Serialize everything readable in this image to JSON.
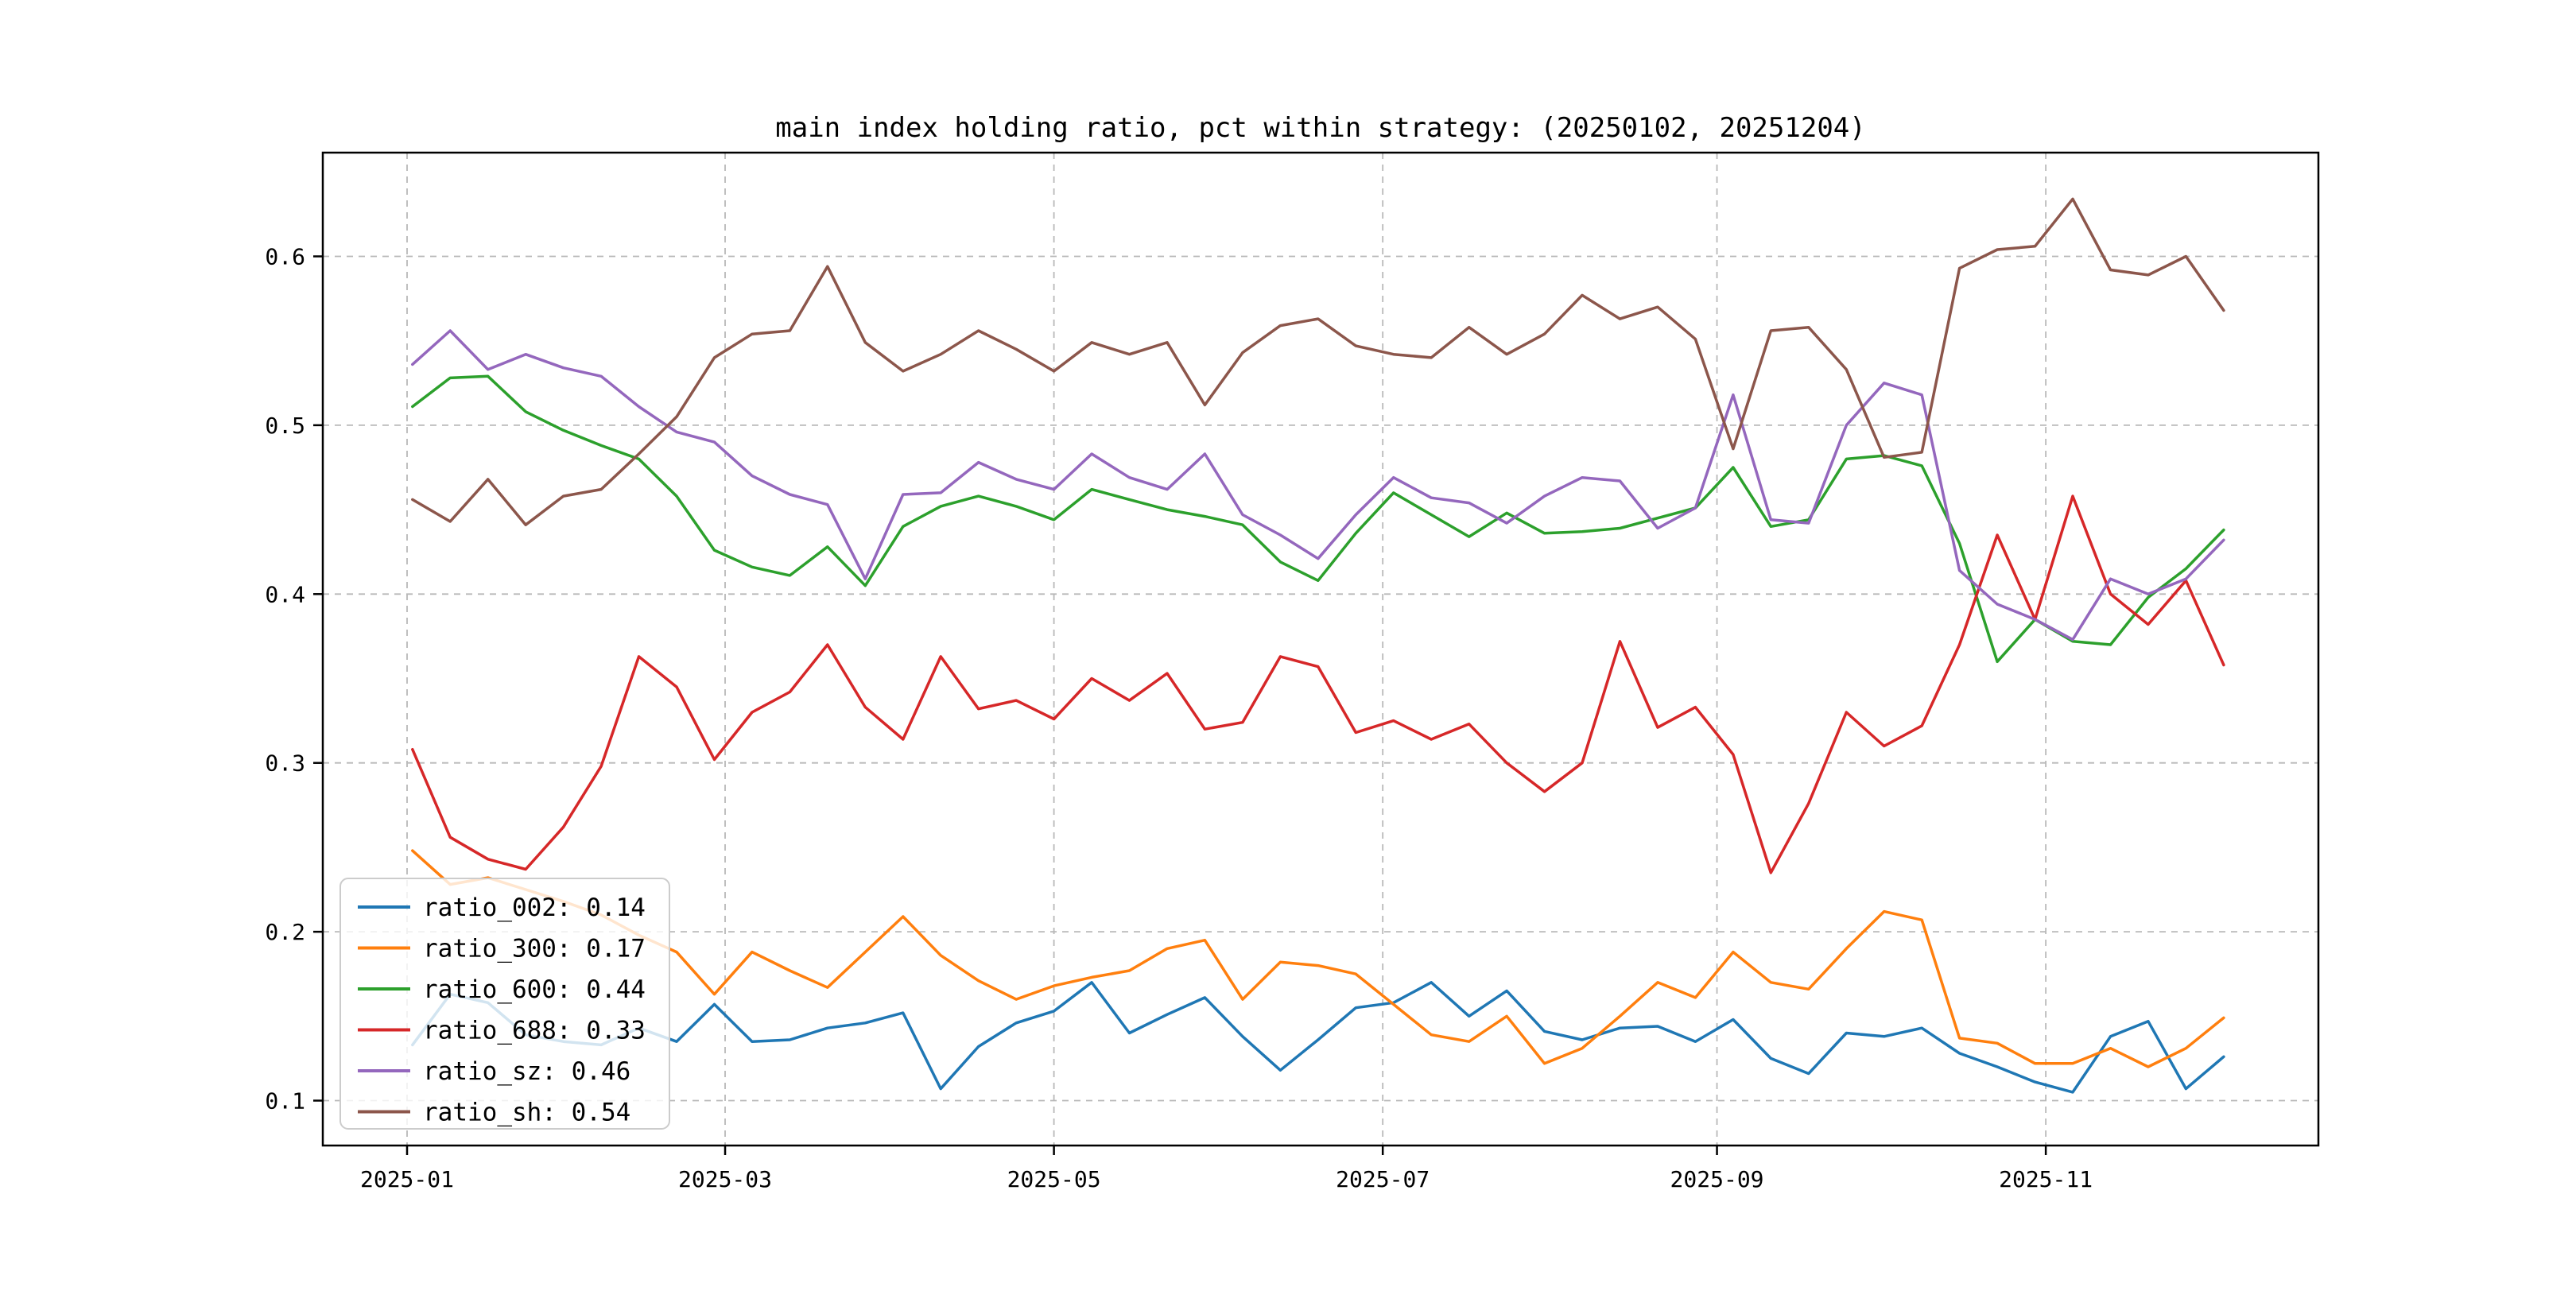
{
  "title": "main index holding ratio, pct within strategy: (20250102, 20251204)",
  "chart_data": {
    "type": "line",
    "title": "main index holding ratio, pct within strategy: (20250102, 20251204)",
    "xlabel": "",
    "ylabel": "",
    "grid": true,
    "grid_style": "dashed",
    "legend_position": "lower left",
    "ylim": [
      0.073,
      0.661
    ],
    "y_ticks": [
      0.1,
      0.2,
      0.3,
      0.4,
      0.5,
      0.6
    ],
    "y_tick_labels": [
      "0.1",
      "0.2",
      "0.3",
      "0.4",
      "0.5",
      "0.6"
    ],
    "x_tick_labels": [
      "2025-01",
      "2025-03",
      "2025-05",
      "2025-07",
      "2025-09",
      "2025-11"
    ],
    "x_tick_months": [
      1,
      3,
      5,
      7,
      9,
      11
    ],
    "x": [
      "2025-01-02",
      "2025-01-09",
      "2025-01-16",
      "2025-01-23",
      "2025-01-30",
      "2025-02-06",
      "2025-02-13",
      "2025-02-20",
      "2025-02-27",
      "2025-03-06",
      "2025-03-13",
      "2025-03-20",
      "2025-03-27",
      "2025-04-03",
      "2025-04-10",
      "2025-04-17",
      "2025-04-24",
      "2025-05-01",
      "2025-05-08",
      "2025-05-15",
      "2025-05-22",
      "2025-05-29",
      "2025-06-05",
      "2025-06-12",
      "2025-06-19",
      "2025-06-26",
      "2025-07-03",
      "2025-07-10",
      "2025-07-17",
      "2025-07-24",
      "2025-07-31",
      "2025-08-07",
      "2025-08-14",
      "2025-08-21",
      "2025-08-28",
      "2025-09-04",
      "2025-09-11",
      "2025-09-18",
      "2025-09-25",
      "2025-10-02",
      "2025-10-09",
      "2025-10-16",
      "2025-10-23",
      "2025-10-30",
      "2025-11-06",
      "2025-11-13",
      "2025-11-20",
      "2025-11-27",
      "2025-12-04"
    ],
    "series": [
      {
        "name": "ratio_002",
        "legend_label": "ratio_002: 0.14",
        "color": "#1f77b4",
        "values": [
          0.133,
          0.163,
          0.158,
          0.139,
          0.135,
          0.133,
          0.143,
          0.135,
          0.157,
          0.135,
          0.136,
          0.143,
          0.146,
          0.152,
          0.107,
          0.132,
          0.146,
          0.153,
          0.17,
          0.14,
          0.151,
          0.161,
          0.138,
          0.118,
          0.136,
          0.155,
          0.158,
          0.17,
          0.15,
          0.165,
          0.141,
          0.136,
          0.143,
          0.144,
          0.135,
          0.148,
          0.125,
          0.116,
          0.14,
          0.138,
          0.143,
          0.128,
          0.12,
          0.111,
          0.105,
          0.138,
          0.147,
          0.107,
          0.126
        ]
      },
      {
        "name": "ratio_300",
        "legend_label": "ratio_300: 0.17",
        "color": "#ff7f0e",
        "values": [
          0.248,
          0.228,
          0.232,
          0.225,
          0.218,
          0.21,
          0.198,
          0.188,
          0.163,
          0.188,
          0.177,
          0.167,
          0.188,
          0.209,
          0.186,
          0.171,
          0.16,
          0.168,
          0.173,
          0.177,
          0.19,
          0.195,
          0.16,
          0.182,
          0.18,
          0.175,
          0.157,
          0.139,
          0.135,
          0.15,
          0.122,
          0.131,
          0.15,
          0.17,
          0.161,
          0.188,
          0.17,
          0.166,
          0.19,
          0.212,
          0.207,
          0.137,
          0.134,
          0.122,
          0.122,
          0.131,
          0.12,
          0.131,
          0.149
        ]
      },
      {
        "name": "ratio_600",
        "legend_label": "ratio_600: 0.44",
        "color": "#2ca02c",
        "values": [
          0.511,
          0.528,
          0.529,
          0.508,
          0.497,
          0.488,
          0.48,
          0.458,
          0.426,
          0.416,
          0.411,
          0.428,
          0.405,
          0.44,
          0.452,
          0.458,
          0.452,
          0.444,
          0.462,
          0.456,
          0.45,
          0.446,
          0.441,
          0.419,
          0.408,
          0.436,
          0.46,
          0.447,
          0.434,
          0.448,
          0.436,
          0.437,
          0.439,
          0.445,
          0.451,
          0.475,
          0.44,
          0.444,
          0.48,
          0.482,
          0.476,
          0.43,
          0.36,
          0.385,
          0.372,
          0.37,
          0.398,
          0.415,
          0.438
        ]
      },
      {
        "name": "ratio_688",
        "legend_label": "ratio_688: 0.33",
        "color": "#d62728",
        "values": [
          0.308,
          0.256,
          0.243,
          0.237,
          0.262,
          0.298,
          0.363,
          0.345,
          0.302,
          0.33,
          0.342,
          0.37,
          0.333,
          0.314,
          0.363,
          0.332,
          0.337,
          0.326,
          0.35,
          0.337,
          0.353,
          0.32,
          0.324,
          0.363,
          0.357,
          0.318,
          0.325,
          0.314,
          0.323,
          0.3,
          0.283,
          0.3,
          0.372,
          0.321,
          0.333,
          0.305,
          0.235,
          0.276,
          0.33,
          0.31,
          0.322,
          0.37,
          0.435,
          0.385,
          0.458,
          0.4,
          0.382,
          0.408,
          0.358
        ]
      },
      {
        "name": "ratio_sz",
        "legend_label": "ratio_sz: 0.46",
        "color": "#9467bd",
        "values": [
          0.536,
          0.556,
          0.533,
          0.542,
          0.534,
          0.529,
          0.511,
          0.496,
          0.49,
          0.47,
          0.459,
          0.453,
          0.409,
          0.459,
          0.46,
          0.478,
          0.468,
          0.462,
          0.483,
          0.469,
          0.462,
          0.483,
          0.447,
          0.435,
          0.421,
          0.447,
          0.469,
          0.457,
          0.454,
          0.442,
          0.458,
          0.469,
          0.467,
          0.439,
          0.451,
          0.518,
          0.444,
          0.442,
          0.5,
          0.525,
          0.518,
          0.414,
          0.394,
          0.385,
          0.373,
          0.409,
          0.4,
          0.409,
          0.432
        ]
      },
      {
        "name": "ratio_sh",
        "legend_label": "ratio_sh: 0.54",
        "color": "#8c564b",
        "values": [
          0.456,
          0.443,
          0.468,
          0.441,
          0.458,
          0.462,
          0.483,
          0.505,
          0.54,
          0.554,
          0.556,
          0.594,
          0.549,
          0.532,
          0.542,
          0.556,
          0.545,
          0.532,
          0.549,
          0.542,
          0.549,
          0.512,
          0.543,
          0.559,
          0.563,
          0.547,
          0.542,
          0.54,
          0.558,
          0.542,
          0.554,
          0.577,
          0.563,
          0.57,
          0.551,
          0.486,
          0.556,
          0.558,
          0.533,
          0.481,
          0.484,
          0.593,
          0.604,
          0.606,
          0.634,
          0.592,
          0.589,
          0.6,
          0.568
        ]
      }
    ]
  }
}
